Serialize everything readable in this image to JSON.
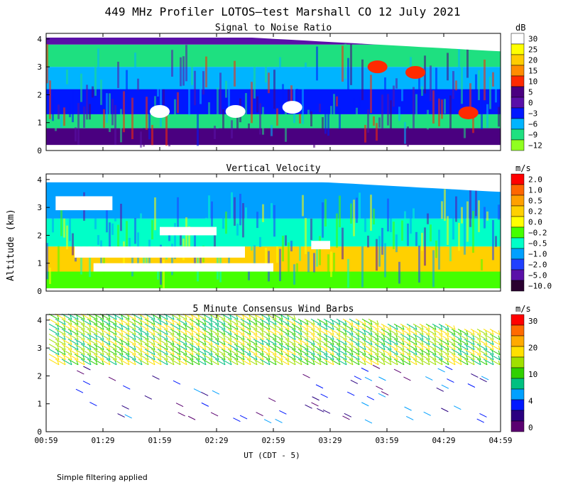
{
  "figure": {
    "title": "449 MHz Profiler LOTOS–test Marshall CO 12 July 2021",
    "ylabel": "Altitude (km)",
    "xlabel": "UT  (CDT - 5)",
    "note": "Simple filtering applied"
  },
  "chart_data": [
    {
      "type": "heatmap",
      "title": "Signal to Noise Ratio",
      "unit": "dB",
      "x_ticks": [
        "00:59",
        "01:29",
        "01:59",
        "02:29",
        "02:59",
        "03:29",
        "03:59",
        "04:29",
        "04:59"
      ],
      "y_ticks": [
        0,
        1,
        2,
        3,
        4
      ],
      "ylim": [
        0,
        4.2
      ],
      "colorbar": {
        "labels": [
          "30",
          "25",
          "20",
          "15",
          "10",
          "5",
          "0",
          "−3",
          "−6",
          "−9",
          "−12"
        ],
        "colors": [
          "#ffffff",
          "#ffff00",
          "#ffcc00",
          "#ff8c00",
          "#ff2a00",
          "#4a0080",
          "#5a10a8",
          "#0018ff",
          "#00b4ff",
          "#1ee080",
          "#90ff20"
        ]
      },
      "bands": [
        {
          "z0": 0.2,
          "z1": 0.8,
          "color": "#4a0080"
        },
        {
          "z0": 0.8,
          "z1": 1.3,
          "color": "#1ee080"
        },
        {
          "z0": 1.3,
          "z1": 2.2,
          "color": "#0018ff"
        },
        {
          "z0": 2.2,
          "z1": 3.0,
          "color": "#00b4ff"
        },
        {
          "z0": 3.0,
          "z1": 3.8,
          "color": "#1ee080"
        },
        {
          "z0": 3.8,
          "z1": 4.05,
          "color": "#5a10a8"
        }
      ],
      "patches": [
        {
          "t": "03:54",
          "z": 3.0,
          "color": "#ff2a00"
        },
        {
          "t": "04:14",
          "z": 2.8,
          "color": "#ff2a00"
        },
        {
          "t": "04:42",
          "z": 1.35,
          "color": "#ff2a00"
        },
        {
          "t": "02:39",
          "z": 1.4,
          "color": "#ffffff"
        },
        {
          "t": "01:59",
          "z": 1.4,
          "color": "#ffffff"
        },
        {
          "t": "03:09",
          "z": 1.55,
          "color": "#ffffff"
        }
      ]
    },
    {
      "type": "heatmap",
      "title": "Vertical Velocity",
      "unit": "m/s",
      "x_ticks": [
        "00:59",
        "01:29",
        "01:59",
        "02:29",
        "02:59",
        "03:29",
        "03:59",
        "04:29",
        "04:59"
      ],
      "y_ticks": [
        0,
        1,
        2,
        3,
        4
      ],
      "ylim": [
        0,
        4.2
      ],
      "colorbar": {
        "labels": [
          "2.0",
          "1.0",
          "0.5",
          "0.2",
          "0.0",
          "−0.2",
          "−0.5",
          "−1.0",
          "−2.0",
          "−5.0",
          "−10.0"
        ],
        "colors": [
          "#ff0000",
          "#ff6600",
          "#ffa000",
          "#ffd000",
          "#ffff00",
          "#44ff00",
          "#00ffc8",
          "#00a0ff",
          "#2040ff",
          "#5a10a8",
          "#2a0030"
        ]
      },
      "bands": [
        {
          "z0": 0.1,
          "z1": 0.7,
          "color": "#44ff00"
        },
        {
          "z0": 0.7,
          "z1": 1.6,
          "color": "#ffd000"
        },
        {
          "z0": 1.6,
          "z1": 2.6,
          "color": "#00ffc8"
        },
        {
          "z0": 2.6,
          "z1": 3.9,
          "color": "#00a0ff"
        }
      ],
      "gaps": [
        {
          "t0": "01:04",
          "t1": "01:34",
          "z0": 2.9,
          "z1": 3.4
        },
        {
          "t0": "01:59",
          "t1": "02:29",
          "z0": 2.0,
          "z1": 2.3
        },
        {
          "t0": "01:14",
          "t1": "02:44",
          "z0": 1.2,
          "z1": 1.6
        },
        {
          "t0": "01:24",
          "t1": "02:59",
          "z0": 0.7,
          "z1": 1.0
        },
        {
          "t0": "03:19",
          "t1": "03:29",
          "z0": 1.5,
          "z1": 1.8
        }
      ]
    },
    {
      "type": "barbs",
      "title": "5 Minute Consensus Wind Barbs",
      "unit": "m/s",
      "x_ticks": [
        "00:59",
        "01:29",
        "01:59",
        "02:29",
        "02:59",
        "03:29",
        "03:59",
        "04:29",
        "04:59"
      ],
      "y_ticks": [
        0,
        1,
        2,
        3,
        4
      ],
      "ylim": [
        0,
        4.2
      ],
      "colorbar": {
        "labels": [
          "30",
          "20",
          "10",
          "4",
          "0"
        ],
        "colors": [
          "#ff0000",
          "#ff6a00",
          "#ffaa00",
          "#ffe000",
          "#a0e000",
          "#30d000",
          "#00c080",
          "#00a0ff",
          "#0018ff",
          "#2a0080",
          "#5a0070"
        ]
      }
    }
  ]
}
